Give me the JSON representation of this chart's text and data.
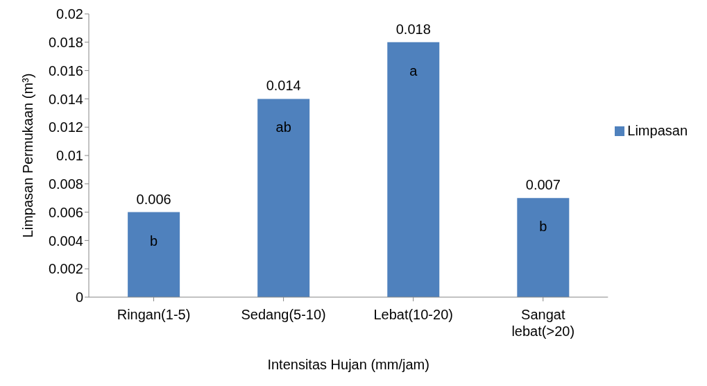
{
  "chart_data": {
    "type": "bar",
    "xlabel": "Intensitas Hujan (mm/jam)",
    "ylabel": "Limpasan Permukaan (m³)",
    "categories": [
      "Ringan(1-5)",
      "Sedang(5-10)",
      "Lebat(10-20)",
      "Sangat lebat(>20)"
    ],
    "series": [
      {
        "name": "Limpasan",
        "color": "#4f81bd",
        "values": [
          0.006,
          0.014,
          0.018,
          0.007
        ]
      }
    ],
    "ylim": [
      0,
      0.02
    ],
    "yticks": [
      0,
      0.002,
      0.004,
      0.006,
      0.008,
      0.01,
      0.012,
      0.014,
      0.016,
      0.018,
      0.02
    ],
    "data_labels": true,
    "grid": false,
    "legend": "right",
    "annotations": [
      "b",
      "ab",
      "a",
      "b"
    ]
  }
}
